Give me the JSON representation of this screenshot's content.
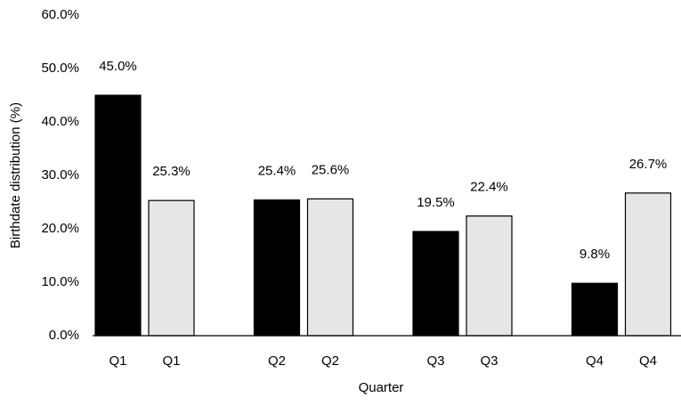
{
  "chart_data": {
    "type": "bar",
    "x_label": "Quarter",
    "y_label": "Birthdate distribution (%)",
    "categories": [
      "Q1",
      "Q2",
      "Q3",
      "Q4"
    ],
    "series": [
      {
        "color": "#000000",
        "values": [
          45.0,
          25.4,
          19.5,
          9.8
        ],
        "value_labels": [
          "45.0%",
          "25.4%",
          "19.5%",
          "9.8%"
        ]
      },
      {
        "color": "#e6e6e6",
        "values": [
          25.3,
          25.6,
          22.4,
          26.7
        ],
        "value_labels": [
          "25.3%",
          "25.6%",
          "22.4%",
          "26.7%"
        ]
      }
    ],
    "ylim": [
      0,
      60
    ],
    "yticks": [
      {
        "value": 0,
        "label": "0.0%"
      },
      {
        "value": 10,
        "label": "10.0%"
      },
      {
        "value": 20,
        "label": "20.0%"
      },
      {
        "value": 30,
        "label": "30.0%"
      },
      {
        "value": 40,
        "label": "40.0%"
      },
      {
        "value": 50,
        "label": "50.0%"
      },
      {
        "value": 60,
        "label": "60.0%"
      }
    ],
    "grid": false
  }
}
